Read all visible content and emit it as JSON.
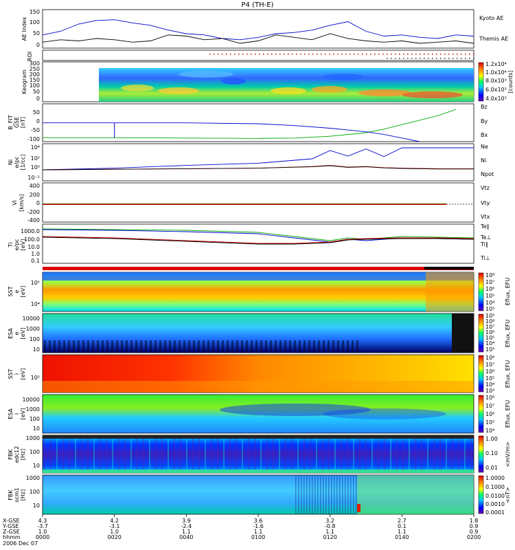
{
  "title": "P4 (TH-E)",
  "colors": {
    "kyoto": "#0000cc",
    "themis": "#000000",
    "bz": "#cc0000",
    "by": "#00aa00",
    "bx": "#0000cc",
    "ne": "#cc0000",
    "ni": "#000000",
    "npot": "#0000cc",
    "vtz": "#cc0000",
    "vty": "#00aa00",
    "vtx": "#0000cc"
  },
  "chart_data": {
    "type": "multi-panel",
    "time_axis": {
      "label_hhmm": "hhmm",
      "date": "2006 Dec 07",
      "coord_labels": [
        "X-GSE",
        "Y-GSE",
        "Z-GSE"
      ],
      "ticks": [
        {
          "x": "4.3",
          "y": "-3.7",
          "z": "1.0",
          "t": "0000"
        },
        {
          "x": "4.2",
          "y": "-3.1",
          "z": "1.0",
          "t": "0020"
        },
        {
          "x": "3.9",
          "y": "-2.4",
          "z": "1.1",
          "t": "0040"
        },
        {
          "x": "3.6",
          "y": "-1.6",
          "z": "1.1",
          "t": "0100"
        },
        {
          "x": "3.2",
          "y": "-0.8",
          "z": "1.1",
          "t": "0120"
        },
        {
          "x": "2.7",
          "y": "0.1",
          "z": "1.1",
          "t": "0140"
        },
        {
          "x": "1.8",
          "y": "0.9",
          "z": "0.9",
          "t": "0200"
        }
      ]
    },
    "panels": [
      {
        "id": "ae",
        "ylabel": "AE Index",
        "yticks": [
          "150",
          "100",
          "50",
          "0"
        ],
        "series": [
          {
            "name": "Kyoto AE",
            "x": [
              0,
              5,
              10,
              15,
              20,
              25,
              30,
              35,
              40,
              45,
              50,
              55,
              60,
              65,
              70,
              75,
              80,
              85,
              90,
              95,
              100,
              105,
              110,
              115,
              120
            ],
            "values": [
              55,
              70,
              100,
              115,
              118,
              105,
              95,
              75,
              60,
              55,
              40,
              35,
              45,
              60,
              65,
              75,
              95,
              110,
              70,
              50,
              55,
              45,
              40,
              55,
              50
            ]
          },
          {
            "name": "Themis AE",
            "x": [
              0,
              5,
              10,
              15,
              20,
              25,
              30,
              35,
              40,
              45,
              50,
              55,
              60,
              65,
              70,
              75,
              80,
              85,
              90,
              95,
              100,
              105,
              110,
              115,
              120
            ],
            "values": [
              25,
              35,
              30,
              40,
              35,
              25,
              30,
              55,
              50,
              35,
              40,
              20,
              30,
              55,
              45,
              35,
              60,
              40,
              30,
              25,
              30,
              20,
              25,
              30,
              20
            ]
          }
        ]
      },
      {
        "id": "roi",
        "ylabel": "ROI"
      },
      {
        "id": "keogram",
        "ylabel": "Keogram",
        "yticks": [
          "300",
          "250",
          "200",
          "150",
          "100",
          "50",
          "0"
        ],
        "colorbar": {
          "label": "[counts]",
          "ticks": [
            "1.2x10⁴",
            "1.0x10⁴",
            "8.0x10³",
            "6.0x10³",
            "4.0x10³"
          ]
        }
      },
      {
        "id": "bfit",
        "ylabel": "B_FIT",
        "ysub": "GSE",
        "yunit": "[nT]",
        "yticks": [
          "50",
          "0",
          "-50",
          "-100"
        ],
        "series": [
          {
            "name": "Bz",
            "values": []
          },
          {
            "name": "By",
            "x": [
              0,
              20,
              40,
              60,
              70,
              80,
              90,
              95,
              100,
              105,
              110,
              115
            ],
            "values": [
              -78,
              -78,
              -80,
              -82,
              -80,
              -70,
              -50,
              -30,
              -5,
              20,
              45,
              80
            ]
          },
          {
            "name": "Bx",
            "x": [
              0,
              20,
              40,
              60,
              70,
              80,
              90,
              95,
              100,
              105
            ],
            "values": [
              5,
              5,
              5,
              0,
              -10,
              -25,
              -45,
              -60,
              -80,
              -100
            ]
          }
        ]
      },
      {
        "id": "density",
        "ylabel": "Ni",
        "ysub": "e/pc",
        "yunit": "[1/cc]",
        "yticks": [
          "10⁴",
          "10²",
          "10⁰",
          "10⁻²"
        ],
        "series": [
          {
            "name": "Ne"
          },
          {
            "name": "Ni"
          },
          {
            "name": "Npot"
          }
        ]
      },
      {
        "id": "velocity",
        "ylabel": "Vi",
        "yunit": "[km/s]",
        "yticks": [
          "400",
          "200",
          "0",
          "-200",
          "-400"
        ],
        "series": [
          {
            "name": "Vtz"
          },
          {
            "name": "Vty"
          },
          {
            "name": "Vtx"
          }
        ]
      },
      {
        "id": "temp",
        "ylabel": "Ti",
        "ysub": "e/pc",
        "yunit": "[eV]",
        "yticks": [
          "1000.0",
          "100.0",
          "10.0",
          "1.0",
          "0.1"
        ],
        "series": [
          {
            "name": "Te∥"
          },
          {
            "name": "Te⊥"
          },
          {
            "name": "Ti∥"
          },
          {
            "name": "Ti⊥"
          }
        ]
      },
      {
        "id": "sst_e",
        "ylabel": "SST",
        "ysub": "e",
        "yunit": "[eV]",
        "yticks": [
          "10⁵",
          "10⁴"
        ],
        "colorbar": {
          "label": "Eflux, EFU",
          "ticks": [
            "10⁸",
            "10⁷",
            "10⁶",
            "10⁵",
            "10⁴",
            "10³"
          ]
        }
      },
      {
        "id": "esa_e",
        "ylabel": "ESA",
        "ysub": "e",
        "yunit": "[eV]",
        "yticks": [
          "10000",
          "1000",
          "100",
          "10"
        ],
        "colorbar": {
          "label": "Eflux, EFU",
          "ticks": [
            "10⁹",
            "10⁸",
            "10⁷",
            "10⁶",
            "10⁵",
            "10⁴",
            "10³"
          ]
        }
      },
      {
        "id": "sst_i",
        "ylabel": "SST",
        "ysub": "i",
        "yunit": "[eV]",
        "yticks": [
          "10⁵"
        ],
        "colorbar": {
          "label": "Eflux, EFU",
          "ticks": [
            "10⁸",
            "10⁷",
            "10⁶",
            "10⁵",
            "10⁴",
            "10³"
          ]
        }
      },
      {
        "id": "esa_i",
        "ylabel": "ESA",
        "ysub": "i",
        "yunit": "[eV]",
        "yticks": [
          "10000",
          "1000",
          "100",
          "10"
        ],
        "colorbar": {
          "label": "Eflux, EFU",
          "ticks": [
            "10⁸",
            "10⁷",
            "10⁶",
            "10⁵",
            "10⁴"
          ]
        }
      },
      {
        "id": "fbk_e",
        "ylabel": "FBK",
        "ysub": "edc12",
        "yunit": "[Hz]",
        "yticks": [
          "1000",
          "100",
          "10"
        ],
        "colorbar": {
          "label": "<mV/m>",
          "ticks": [
            "1.00",
            "0.10",
            "0.01"
          ]
        }
      },
      {
        "id": "fbk_b",
        "ylabel": "FBK",
        "ysub": "scm1",
        "yunit": "[Hz]",
        "yticks": [
          "1000",
          "100",
          "10"
        ],
        "colorbar": {
          "label": "<nT>",
          "ticks": [
            "1.0000",
            "0.1000",
            "0.0100",
            "0.0010",
            "0.0001"
          ]
        }
      }
    ]
  }
}
